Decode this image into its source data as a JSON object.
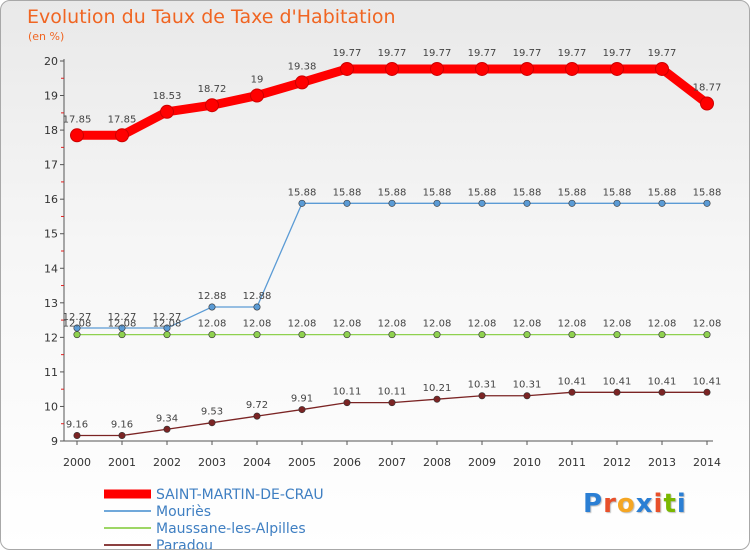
{
  "header": {
    "title": "Evolution du Taux de Taxe d'Habitation",
    "subtitle": "(en %)"
  },
  "logo": {
    "text": "Proxiti",
    "letter_colors": [
      "#2b7fd4",
      "#e8502a",
      "#f5a623",
      "#2b7fd4",
      "#e8502a",
      "#7ab800",
      "#2b7fd4"
    ]
  },
  "chart_data": {
    "type": "line",
    "title": "Evolution du Taux de Taxe d'Habitation",
    "subtitle": "(en %)",
    "xlabel": "",
    "ylabel": "",
    "x": [
      "2000",
      "2001",
      "2002",
      "2003",
      "2004",
      "2005",
      "2006",
      "2007",
      "2008",
      "2009",
      "2010",
      "2011",
      "2012",
      "2013",
      "2014"
    ],
    "ylim": [
      9,
      20
    ],
    "yticks": [
      9,
      10,
      11,
      12,
      13,
      14,
      15,
      16,
      17,
      18,
      19,
      20
    ],
    "legend_position": "bottom-left",
    "series": [
      {
        "name": "SAINT-MARTIN-DE-CRAU",
        "color": "#ff0000",
        "emphasis": "thick",
        "values": [
          17.85,
          17.85,
          18.53,
          18.72,
          19,
          19.38,
          19.77,
          19.77,
          19.77,
          19.77,
          19.77,
          19.77,
          19.77,
          19.77,
          18.77
        ],
        "labels": [
          "17.85",
          "17.85",
          "18.53",
          "18.72",
          "19",
          "19.38",
          "19.77",
          "19.77",
          "19.77",
          "19.77",
          "19.77",
          "19.77",
          "19.77",
          "19.77",
          "18.77"
        ]
      },
      {
        "name": "Mouriès",
        "color": "#5b9bd5",
        "emphasis": "normal",
        "values": [
          12.27,
          12.27,
          12.27,
          12.88,
          12.88,
          15.88,
          15.88,
          15.88,
          15.88,
          15.88,
          15.88,
          15.88,
          15.88,
          15.88,
          15.88
        ],
        "labels": [
          "12.27",
          "12.27",
          "12.27",
          "12.88",
          "12.88",
          "15.88",
          "15.88",
          "15.88",
          "15.88",
          "15.88",
          "15.88",
          "15.88",
          "15.88",
          "15.88",
          "15.88"
        ]
      },
      {
        "name": "Maussane-les-Alpilles",
        "color": "#8fd14f",
        "emphasis": "normal",
        "values": [
          12.08,
          12.08,
          12.08,
          12.08,
          12.08,
          12.08,
          12.08,
          12.08,
          12.08,
          12.08,
          12.08,
          12.08,
          12.08,
          12.08,
          12.08
        ],
        "labels": [
          "12.08",
          "12.08",
          "12.08",
          "12.08",
          "12.08",
          "12.08",
          "12.08",
          "12.08",
          "12.08",
          "12.08",
          "12.08",
          "12.08",
          "12.08",
          "12.08",
          "12.08"
        ]
      },
      {
        "name": "Paradou",
        "color": "#7b2424",
        "emphasis": "normal",
        "values": [
          9.16,
          9.16,
          9.34,
          9.53,
          9.72,
          9.91,
          10.11,
          10.11,
          10.21,
          10.31,
          10.31,
          10.41,
          10.41,
          10.41,
          10.41
        ],
        "labels": [
          "9.16",
          "9.16",
          "9.34",
          "9.53",
          "9.72",
          "9.91",
          "10.11",
          "10.11",
          "10.21",
          "10.31",
          "10.31",
          "10.41",
          "10.41",
          "10.41",
          "10.41"
        ]
      }
    ]
  }
}
